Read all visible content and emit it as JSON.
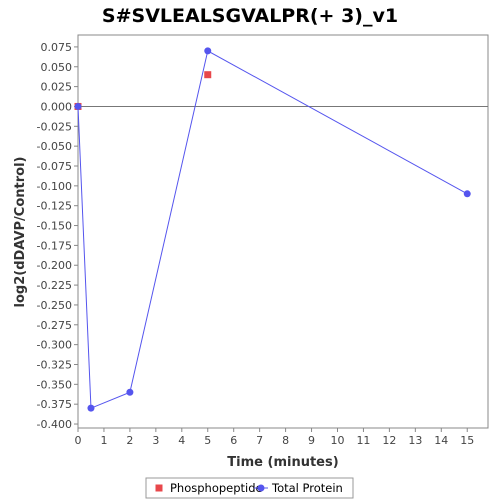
{
  "chart_data": {
    "type": "scatter",
    "title": "S#SVLEALSGVALPR(+ 3)_v1",
    "xlabel": "Time (minutes)",
    "ylabel": "log2(dDAVP/Control)",
    "xlim": [
      0,
      15.8
    ],
    "ylim": [
      -0.405,
      0.09
    ],
    "xticks": [
      "0",
      "1",
      "2",
      "3",
      "4",
      "5",
      "6",
      "7",
      "8",
      "9",
      "10",
      "11",
      "12",
      "13",
      "14",
      "15"
    ],
    "yticks": [
      "0.075",
      "0.050",
      "0.025",
      "0.000",
      "-0.025",
      "-0.050",
      "-0.075",
      "-0.100",
      "-0.125",
      "-0.150",
      "-0.175",
      "-0.200",
      "-0.225",
      "-0.250",
      "-0.275",
      "-0.300",
      "-0.325",
      "-0.350",
      "-0.375",
      "-0.400"
    ],
    "grid": false,
    "legend_position": "bottom",
    "series": [
      {
        "name": "Phosphopeptide",
        "color": "#e8474b",
        "marker": "square",
        "line": false,
        "x": [
          0,
          5
        ],
        "y": [
          0.0,
          0.04
        ]
      },
      {
        "name": "Total Protein",
        "color": "#5555ee",
        "marker": "circle",
        "line": true,
        "x": [
          0,
          0.5,
          2,
          5,
          15
        ],
        "y": [
          0.0,
          -0.38,
          -0.36,
          0.07,
          -0.11
        ]
      }
    ]
  }
}
